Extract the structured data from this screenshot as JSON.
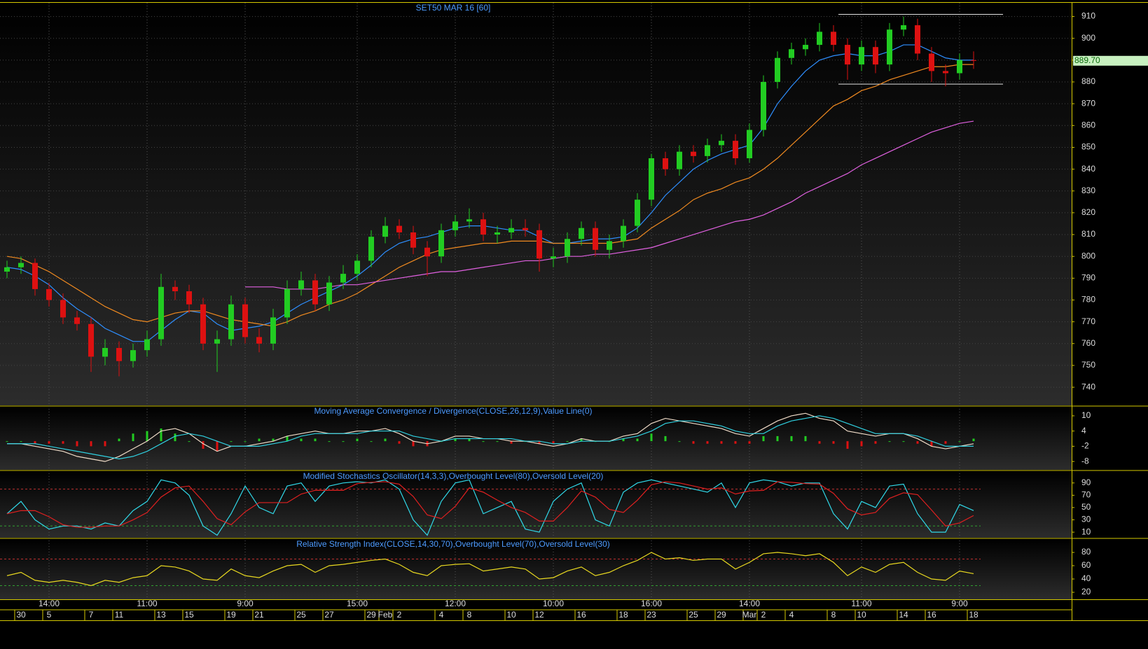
{
  "chart_data": [
    {
      "type": "candlestick",
      "title": "SET50 MAR 16   [60]",
      "ylim": [
        732,
        915
      ],
      "yticks": [
        740,
        750,
        760,
        770,
        780,
        790,
        800,
        810,
        820,
        830,
        840,
        850,
        860,
        870,
        880,
        890,
        900,
        910
      ],
      "grid": true,
      "up_color": "#22cc22",
      "down_color": "#dd1111",
      "open": [
        793,
        795,
        797,
        785,
        780,
        772,
        769,
        754,
        758,
        752,
        757,
        762,
        786,
        784,
        778,
        760,
        762,
        778,
        763,
        760,
        772,
        785,
        789,
        778,
        788,
        792,
        798,
        809,
        814,
        811,
        804,
        800,
        812,
        816,
        817,
        810,
        811,
        813,
        812,
        799,
        800,
        808,
        813,
        803,
        807,
        814,
        826,
        845,
        840,
        848,
        846,
        851,
        853,
        845,
        858,
        880,
        891,
        895,
        897,
        903,
        897,
        888,
        896,
        888,
        904,
        906,
        893,
        885,
        884,
        890
      ],
      "high": [
        798,
        800,
        799,
        788,
        783,
        775,
        772,
        762,
        761,
        760,
        766,
        792,
        789,
        787,
        781,
        766,
        782,
        781,
        767,
        776,
        789,
        793,
        792,
        791,
        796,
        801,
        812,
        818,
        817,
        814,
        807,
        815,
        819,
        822,
        820,
        814,
        817,
        817,
        815,
        804,
        811,
        816,
        816,
        810,
        817,
        829,
        847,
        848,
        851,
        851,
        854,
        856,
        856,
        861,
        883,
        894,
        898,
        900,
        907,
        906,
        900,
        899,
        899,
        907,
        910,
        909,
        896,
        888,
        893,
        894
      ],
      "low": [
        790,
        792,
        782,
        777,
        769,
        766,
        747,
        750,
        745,
        749,
        754,
        759,
        780,
        774,
        757,
        747,
        759,
        760,
        756,
        757,
        769,
        782,
        775,
        775,
        785,
        789,
        795,
        806,
        808,
        801,
        791,
        797,
        809,
        813,
        807,
        806,
        808,
        809,
        793,
        795,
        797,
        805,
        800,
        799,
        804,
        811,
        823,
        837,
        837,
        843,
        843,
        848,
        842,
        843,
        855,
        877,
        888,
        892,
        894,
        894,
        881,
        885,
        884,
        885,
        901,
        890,
        880,
        878,
        881,
        886
      ],
      "close": [
        795,
        797,
        785,
        780,
        772,
        769,
        754,
        758,
        752,
        757,
        762,
        786,
        784,
        778,
        760,
        762,
        778,
        763,
        760,
        772,
        785,
        789,
        778,
        788,
        792,
        798,
        809,
        814,
        811,
        804,
        800,
        812,
        816,
        817,
        810,
        811,
        813,
        812,
        799,
        800,
        808,
        813,
        803,
        807,
        814,
        826,
        845,
        840,
        848,
        846,
        851,
        853,
        845,
        858,
        880,
        891,
        895,
        897,
        903,
        897,
        888,
        896,
        888,
        904,
        906,
        893,
        885,
        884,
        890,
        889.7
      ],
      "last_price": {
        "value": 889.7,
        "label": "889.70"
      },
      "last_price_color": "#c8f0c0",
      "series": [
        {
          "color": "#2e8fff",
          "values": [
            795,
            794,
            791,
            787,
            781,
            776,
            772,
            767,
            764,
            761,
            761,
            766,
            771,
            775,
            774,
            769,
            766,
            767,
            768,
            770,
            774,
            778,
            781,
            784,
            787,
            791,
            796,
            802,
            806,
            808,
            809,
            811,
            813,
            814,
            814,
            813,
            812,
            812,
            809,
            806,
            806,
            807,
            808,
            808,
            809,
            813,
            820,
            828,
            834,
            840,
            844,
            847,
            849,
            851,
            859,
            870,
            878,
            885,
            890,
            892,
            893,
            892,
            892,
            894,
            897,
            897,
            894,
            891,
            890,
            890
          ]
        },
        {
          "color": "#f08a20",
          "values": [
            800,
            799,
            796,
            793,
            789,
            785,
            781,
            777,
            774,
            771,
            770,
            772,
            774,
            775,
            775,
            773,
            771,
            770,
            769,
            768,
            770,
            773,
            775,
            778,
            780,
            783,
            787,
            791,
            795,
            798,
            801,
            803,
            804,
            805,
            806,
            806,
            807,
            807,
            807,
            806,
            806,
            806,
            806,
            806,
            807,
            808,
            813,
            817,
            821,
            826,
            829,
            831,
            834,
            836,
            840,
            845,
            851,
            857,
            863,
            869,
            872,
            876,
            878,
            881,
            883,
            885,
            887,
            887,
            888,
            888
          ]
        },
        {
          "color": "#e060e0",
          "values": [
            null,
            null,
            null,
            null,
            null,
            null,
            null,
            null,
            null,
            null,
            null,
            null,
            null,
            null,
            null,
            null,
            null,
            786,
            786,
            786,
            785,
            785,
            785,
            786,
            787,
            787,
            788,
            789,
            790,
            791,
            792,
            793,
            793,
            794,
            795,
            796,
            797,
            798,
            798,
            799,
            800,
            800,
            801,
            801,
            802,
            803,
            804,
            806,
            808,
            810,
            812,
            814,
            816,
            817,
            819,
            822,
            825,
            829,
            832,
            835,
            838,
            842,
            845,
            848,
            851,
            854,
            857,
            859,
            861,
            862
          ]
        }
      ],
      "levels": [
        {
          "value": 911,
          "color": "#e0e0e0"
        },
        {
          "value": 879,
          "color": "#e0e0e0"
        }
      ],
      "time_labels": [
        null,
        null,
        null,
        "14:00",
        null,
        null,
        null,
        null,
        null,
        null,
        "11:00",
        null,
        null,
        null,
        null,
        null,
        null,
        "9:00",
        null,
        null,
        null,
        null,
        null,
        null,
        null,
        "15:00",
        null,
        null,
        null,
        null,
        null,
        null,
        "12:00",
        null,
        null,
        null,
        null,
        null,
        null,
        "10:00",
        null,
        null,
        null,
        null,
        null,
        null,
        "16:00",
        null,
        null,
        null,
        null,
        null,
        null,
        "14:00",
        null,
        null,
        null,
        null,
        null,
        null,
        null,
        "11:00",
        null,
        null,
        null,
        null,
        null,
        null,
        "9:00",
        null
      ],
      "date_labels": [
        null,
        "30",
        null,
        "5",
        null,
        null,
        "7",
        null,
        "11",
        null,
        null,
        "13",
        null,
        "15",
        null,
        null,
        "19",
        null,
        "21",
        null,
        null,
        "25",
        null,
        "27",
        null,
        null,
        "29",
        "Feb",
        "2",
        null,
        null,
        "4",
        null,
        "8",
        null,
        null,
        "10",
        null,
        "12",
        null,
        null,
        "16",
        null,
        null,
        "18",
        null,
        "23",
        null,
        null,
        "25",
        null,
        "29",
        null,
        "Mar",
        "2",
        null,
        "4",
        null,
        null,
        "8",
        null,
        "10",
        null,
        null,
        "14",
        null,
        "16",
        null,
        null,
        "18"
      ]
    },
    {
      "type": "line",
      "title": "Moving Average Convergence / Divergence(CLOSE,26,12,9),Value Line(0)",
      "ylim": [
        -11,
        13.3
      ],
      "yticks": [
        10,
        4,
        -2,
        -8
      ],
      "series": [
        {
          "type": "bar",
          "color": "#22cc22",
          "negative_color": "#dd1111",
          "values": [
            0,
            0,
            -1,
            -1,
            -1,
            -2,
            -2,
            -2,
            1,
            3,
            4,
            5,
            3,
            0,
            -3,
            -4,
            0,
            0,
            1,
            1,
            2,
            1,
            1,
            0,
            0,
            1,
            0,
            1,
            -1,
            -2,
            -2,
            0,
            1,
            1,
            0,
            0,
            -1,
            0,
            -1,
            -1,
            0,
            1,
            0,
            0,
            1,
            1,
            3,
            2,
            0,
            -1,
            -1,
            -1,
            -1,
            -1,
            2,
            2,
            2,
            2,
            -1,
            -1,
            -3,
            -2,
            -1,
            0,
            0,
            -1,
            -2,
            -1,
            0,
            1
          ]
        },
        {
          "color": "#f0dcc8",
          "values": [
            -1,
            -1,
            -2,
            -3,
            -4,
            -6,
            -7,
            -8,
            -6,
            -3,
            0,
            4,
            5,
            3,
            -1,
            -4,
            -2,
            -2,
            -1,
            0,
            2,
            3,
            4,
            3,
            3,
            4,
            4,
            5,
            3,
            0,
            -1,
            0,
            2,
            2,
            1,
            1,
            0,
            0,
            -1,
            -2,
            -1,
            1,
            0,
            0,
            2,
            3,
            7,
            9,
            8,
            7,
            6,
            5,
            3,
            2,
            5,
            8,
            10,
            11,
            9,
            8,
            4,
            3,
            2,
            3,
            3,
            1,
            -2,
            -3,
            -2,
            -1
          ]
        },
        {
          "color": "#30d0e0",
          "values": [
            -1,
            -1,
            -1,
            -2,
            -3,
            -4,
            -5,
            -6,
            -7,
            -6,
            -4,
            -1,
            2,
            3,
            2,
            0,
            -2,
            -2,
            -2,
            -1,
            0,
            2,
            3,
            3,
            3,
            3,
            4,
            4,
            4,
            2,
            1,
            0,
            1,
            1,
            1,
            1,
            1,
            0,
            0,
            -1,
            -1,
            0,
            0,
            0,
            1,
            2,
            4,
            7,
            8,
            8,
            7,
            6,
            4,
            3,
            3,
            6,
            8,
            9,
            10,
            9,
            7,
            5,
            3,
            3,
            3,
            2,
            0,
            -2,
            -2,
            -2
          ]
        }
      ]
    },
    {
      "type": "line",
      "title": "Modified Stochastics Oscillator(14,3,3),Overbought Level(80),Oversold Level(20)",
      "ylim": [
        1,
        108
      ],
      "yticks": [
        90,
        70,
        50,
        30,
        10
      ],
      "levels": [
        {
          "value": 80,
          "color": "#c03030"
        },
        {
          "value": 20,
          "color": "#30a030"
        }
      ],
      "series": [
        {
          "color": "#30d8e8",
          "values": [
            40,
            60,
            30,
            15,
            20,
            20,
            15,
            25,
            20,
            45,
            60,
            95,
            90,
            70,
            20,
            5,
            40,
            85,
            50,
            40,
            85,
            90,
            60,
            85,
            90,
            92,
            90,
            95,
            80,
            30,
            5,
            60,
            90,
            95,
            40,
            50,
            60,
            15,
            10,
            60,
            80,
            90,
            30,
            20,
            75,
            90,
            95,
            90,
            85,
            80,
            75,
            90,
            50,
            90,
            95,
            92,
            85,
            90,
            90,
            40,
            15,
            60,
            50,
            85,
            88,
            40,
            10,
            10,
            55,
            45
          ]
        },
        {
          "color": "#e02020",
          "values": [
            40,
            45,
            45,
            35,
            22,
            18,
            18,
            20,
            20,
            30,
            42,
            67,
            82,
            85,
            60,
            32,
            22,
            43,
            58,
            58,
            58,
            72,
            78,
            78,
            78,
            89,
            91,
            92,
            88,
            68,
            38,
            32,
            52,
            82,
            75,
            62,
            50,
            42,
            28,
            28,
            50,
            77,
            67,
            47,
            42,
            62,
            87,
            92,
            90,
            85,
            80,
            82,
            72,
            77,
            78,
            92,
            91,
            89,
            88,
            73,
            48,
            38,
            42,
            65,
            74,
            71,
            46,
            20,
            25,
            37
          ]
        }
      ]
    },
    {
      "type": "line",
      "title": "Relative Strength Index(CLOSE,14,30,70),Overbought Level(70),Oversold Level(30)",
      "ylim": [
        10.5,
        99
      ],
      "yticks": [
        80,
        60,
        40,
        20
      ],
      "levels": [
        {
          "value": 70,
          "color": "#c03030"
        },
        {
          "value": 30,
          "color": "#30a030"
        }
      ],
      "series": [
        {
          "color": "#e8d820",
          "values": [
            45,
            50,
            38,
            35,
            38,
            35,
            30,
            38,
            35,
            42,
            45,
            60,
            58,
            52,
            40,
            38,
            55,
            45,
            42,
            52,
            60,
            62,
            50,
            60,
            62,
            65,
            68,
            70,
            62,
            50,
            45,
            60,
            62,
            63,
            52,
            55,
            58,
            55,
            40,
            42,
            52,
            58,
            45,
            50,
            60,
            68,
            80,
            70,
            72,
            68,
            70,
            70,
            55,
            65,
            78,
            80,
            78,
            75,
            78,
            65,
            45,
            58,
            50,
            62,
            65,
            50,
            40,
            38,
            52,
            48
          ]
        }
      ]
    }
  ]
}
